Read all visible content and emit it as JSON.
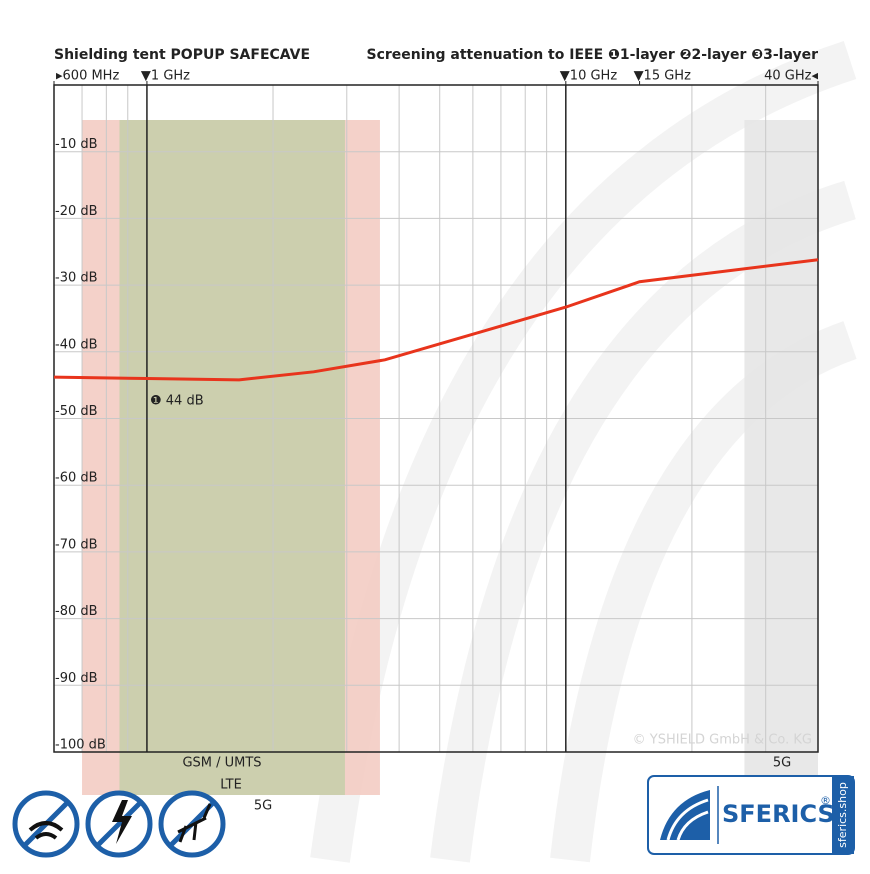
{
  "chart_data": {
    "type": "line",
    "title": "Shielding tent POPUP SAFECAVE",
    "subtitle": "Screening attenuation to IEEE ❶1-layer ❷2-layer ❸3-layer",
    "x": [
      0.6,
      1,
      1.66,
      2.5,
      3.7,
      10,
      15,
      40
    ],
    "series": [
      {
        "color": "#e8341c",
        "values": [
          -43.8,
          -44,
          -44.2,
          -43,
          -41.2,
          -33.3,
          -29.5,
          -26.2
        ]
      }
    ],
    "xscale": "log",
    "xlim": [
      0.6,
      40
    ],
    "xticks": [
      {
        "value": 0.6,
        "label": "▸600 MHz"
      },
      {
        "value": 1,
        "label": "▼1 GHz"
      },
      {
        "value": 10,
        "label": "▼10 GHz"
      },
      {
        "value": 15,
        "label": "▼15 GHz"
      },
      {
        "value": 40,
        "label": "40 GHz◂"
      }
    ],
    "xgrid": [
      0.7,
      0.8,
      0.9,
      2,
      3,
      4,
      5,
      6,
      7,
      8,
      9,
      20,
      30
    ],
    "xmarkers": [
      1,
      10
    ],
    "ylim": [
      -100,
      0
    ],
    "yticks": [
      {
        "value": -10,
        "label": "-10 dB"
      },
      {
        "value": -20,
        "label": "-20 dB"
      },
      {
        "value": -30,
        "label": "-30 dB"
      },
      {
        "value": -40,
        "label": "-40 dB"
      },
      {
        "value": -50,
        "label": "-50 dB"
      },
      {
        "value": -60,
        "label": "-60 dB"
      },
      {
        "value": -70,
        "label": "-70 dB"
      },
      {
        "value": -80,
        "label": "-80 dB"
      },
      {
        "value": -90,
        "label": "-90 dB"
      },
      {
        "value": -100,
        "label": "-100 dB"
      }
    ],
    "grid": true,
    "bands": [
      {
        "from": 0.7,
        "to": 3.6,
        "color": "#f2c9bf"
      },
      {
        "from": 0.86,
        "to": 2.97,
        "color": "#c4cfa9"
      },
      {
        "from": 26.7,
        "to": 40,
        "color": "#e4e4e4"
      }
    ],
    "band_labels": [
      "GSM / UMTS",
      "LTE",
      "5G",
      "5G"
    ],
    "annotation": "❶ 44 dB",
    "credit": "© YSHIELD GmbH & Co. KG",
    "logo": {
      "name": "SFERICS",
      "mark": "®",
      "site": "sferics.shop"
    }
  }
}
